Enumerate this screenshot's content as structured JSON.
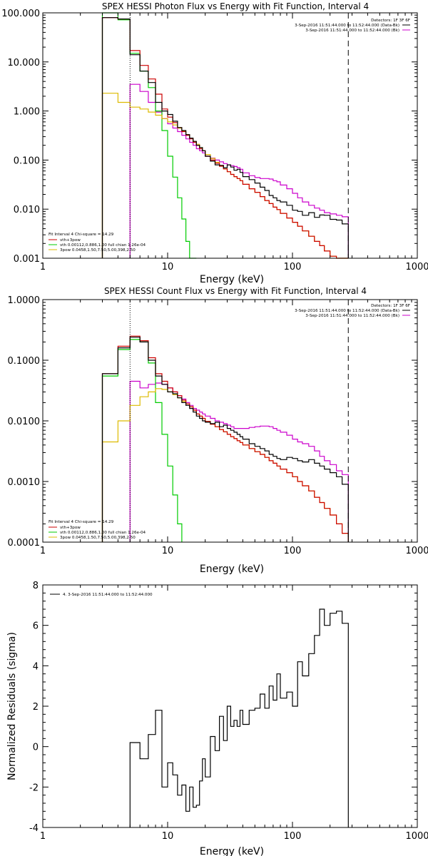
{
  "legend_top_right": {
    "detectors": "Detectors: 1F 3F 6F",
    "lines": [
      {
        "text": "3-Sep-2016 11:51:44.000 to 11:52:44.000 (Data-Bk)",
        "color": "#000000"
      },
      {
        "text": "3-Sep-2016 11:51:44.000 to 11:52:44.000 (Bk)",
        "color": "#cc00cc"
      }
    ]
  },
  "fit_legend": {
    "header": "Fit Interval  4    Chi-square = 14.29",
    "lines": [
      {
        "text": "vth+3pow",
        "color": "#cc0000"
      },
      {
        "text": "vth 0.00112,0.886,1.00   full chian 1.26e-04",
        "color": "#00cc00"
      },
      {
        "text": "3pow 0.0458,1.50,7.50,5.00,398,2.50",
        "color": "#ddbb00"
      }
    ]
  },
  "residual_legend": "4.  3-Sep-2016 11:51:44.000 to 11:52:44.000",
  "colors": {
    "data": "#000000",
    "background": "#cc00cc",
    "total_fit": "#cc0000",
    "thermal": "#00cc00",
    "power_law": "#ddbb00"
  },
  "chart_data": [
    {
      "type": "line",
      "title": "SPEX HESSI Photon Flux vs Energy with Fit Function, Interval 4",
      "xlabel": "Energy (keV)",
      "ylabel": "",
      "x_scale": "log",
      "y_scale": "log",
      "xlim": [
        1,
        1000
      ],
      "ylim": [
        0.001,
        100
      ],
      "xtick_labels": [
        "1",
        "10",
        "100",
        "1000"
      ],
      "ytick_labels": [
        "0.001",
        "0.010",
        "0.100",
        "1.000",
        "10.000",
        "100.000"
      ],
      "fit_range_lines": [
        5,
        280
      ],
      "bin_edges": [
        3,
        4,
        5,
        6,
        7,
        8,
        9,
        10,
        11,
        12,
        13,
        14,
        15,
        16,
        17,
        18,
        19,
        20,
        22,
        24,
        26,
        28,
        30,
        32,
        34,
        36,
        38,
        40,
        45,
        50,
        55,
        60,
        65,
        70,
        75,
        80,
        90,
        100,
        110,
        120,
        135,
        150,
        165,
        180,
        200,
        225,
        250,
        280
      ],
      "series": [
        {
          "name": "Data-Bk",
          "values": [
            80,
            75,
            14,
            6.5,
            3.8,
            1.5,
            1.0,
            0.85,
            0.62,
            0.46,
            0.4,
            0.33,
            0.28,
            0.24,
            0.2,
            0.18,
            0.155,
            0.12,
            0.095,
            0.08,
            0.078,
            0.07,
            0.08,
            0.072,
            0.062,
            0.065,
            0.056,
            0.046,
            0.04,
            0.034,
            0.028,
            0.024,
            0.019,
            0.017,
            0.015,
            0.014,
            0.012,
            0.0095,
            0.009,
            0.0075,
            0.0085,
            0.0068,
            0.0076,
            0.0075,
            0.0062,
            0.006,
            0.005
          ]
        },
        {
          "name": "Bk",
          "values": [
            null,
            null,
            3.5,
            2.5,
            1.5,
            0.95,
            0.7,
            0.55,
            0.45,
            0.38,
            0.32,
            0.27,
            0.23,
            0.2,
            0.17,
            0.155,
            0.14,
            0.12,
            0.11,
            0.1,
            0.092,
            0.085,
            0.08,
            0.077,
            0.074,
            0.07,
            0.065,
            0.055,
            0.048,
            0.044,
            0.042,
            0.042,
            0.041,
            0.038,
            0.036,
            0.031,
            0.026,
            0.021,
            0.017,
            0.014,
            0.012,
            0.0105,
            0.0095,
            0.0085,
            0.008,
            0.0075,
            0.007
          ]
        },
        {
          "name": "vth+3pow",
          "values": [
            80,
            75,
            17,
            8.5,
            4.5,
            2.2,
            1.1,
            0.75,
            0.58,
            0.46,
            0.38,
            0.32,
            0.27,
            0.23,
            0.2,
            0.17,
            0.155,
            0.12,
            0.1,
            0.086,
            0.075,
            0.066,
            0.058,
            0.051,
            0.046,
            0.042,
            0.038,
            0.032,
            0.026,
            0.022,
            0.018,
            0.015,
            0.013,
            0.011,
            0.0098,
            0.0082,
            0.0066,
            0.0054,
            0.0045,
            0.0036,
            0.0028,
            0.0022,
            0.0018,
            0.0014,
            0.0011,
            0.00085,
            0.00065
          ]
        },
        {
          "name": "vth",
          "values": [
            100,
            72,
            15,
            6.5,
            3.0,
            1.0,
            0.4,
            0.12,
            0.045,
            0.017,
            0.0063,
            0.0022,
            0.0008,
            0.0003,
            null,
            null,
            null,
            null,
            null,
            null,
            null,
            null,
            null,
            null,
            null,
            null,
            null,
            null,
            null,
            null,
            null,
            null,
            null,
            null,
            null,
            null,
            null,
            null,
            null,
            null,
            null,
            null,
            null,
            null,
            null,
            null,
            null
          ]
        },
        {
          "name": "3pow",
          "values": [
            2.3,
            1.5,
            1.2,
            1.1,
            0.95,
            0.82,
            0.7,
            0.6,
            0.52,
            0.45,
            0.39,
            0.33,
            0.28,
            0.24,
            0.21,
            0.18,
            0.155,
            0.13,
            0.108,
            0.09,
            0.077,
            0.066,
            0.058,
            0.051,
            0.046,
            0.042,
            0.038,
            0.032,
            0.026,
            0.022,
            0.018,
            0.015,
            0.013,
            0.011,
            0.0098,
            0.0082,
            0.0066,
            0.0054,
            0.0045,
            0.0036,
            0.0028,
            0.0022,
            0.0018,
            0.0014,
            0.0011,
            0.00085,
            0.00065
          ]
        }
      ]
    },
    {
      "type": "line",
      "title": "SPEX HESSI Count Flux vs Energy with Fit Function, Interval 4",
      "xlabel": "Energy (keV)",
      "ylabel": "",
      "x_scale": "log",
      "y_scale": "log",
      "xlim": [
        1,
        1000
      ],
      "ylim": [
        0.0001,
        1
      ],
      "xtick_labels": [
        "1",
        "10",
        "100",
        "1000"
      ],
      "ytick_labels": [
        "0.0001",
        "0.0010",
        "0.0100",
        "0.1000",
        "1.0000"
      ],
      "fit_range_lines": [
        5,
        280
      ],
      "bin_edges": [
        3,
        4,
        5,
        6,
        7,
        8,
        9,
        10,
        11,
        12,
        13,
        14,
        15,
        16,
        17,
        18,
        19,
        20,
        22,
        24,
        26,
        28,
        30,
        32,
        34,
        36,
        38,
        40,
        45,
        50,
        55,
        60,
        65,
        70,
        75,
        80,
        90,
        100,
        110,
        120,
        135,
        150,
        165,
        180,
        200,
        225,
        250,
        280
      ],
      "series": [
        {
          "name": "Data-Bk",
          "values": [
            0.06,
            0.16,
            0.24,
            0.2,
            0.1,
            0.055,
            0.04,
            0.03,
            0.028,
            0.024,
            0.02,
            0.018,
            0.016,
            0.014,
            0.012,
            0.011,
            0.01,
            0.0095,
            0.009,
            0.0095,
            0.008,
            0.0085,
            0.0075,
            0.007,
            0.0065,
            0.006,
            0.0055,
            0.005,
            0.0042,
            0.0038,
            0.0035,
            0.0032,
            0.0028,
            0.0026,
            0.0024,
            0.0023,
            0.0025,
            0.0024,
            0.0022,
            0.0021,
            0.0023,
            0.002,
            0.0018,
            0.0016,
            0.0014,
            0.0012,
            0.0009
          ]
        },
        {
          "name": "Bk",
          "values": [
            null,
            null,
            0.045,
            0.035,
            0.04,
            0.042,
            0.04,
            0.035,
            0.03,
            0.026,
            0.023,
            0.02,
            0.018,
            0.016,
            0.015,
            0.014,
            0.013,
            0.012,
            0.011,
            0.01,
            0.0095,
            0.009,
            0.0085,
            0.008,
            0.0075,
            0.0075,
            0.0075,
            0.0075,
            0.0078,
            0.008,
            0.0082,
            0.0082,
            0.008,
            0.0075,
            0.007,
            0.0065,
            0.0058,
            0.005,
            0.0045,
            0.0042,
            0.0038,
            0.0032,
            0.0026,
            0.0022,
            0.0019,
            0.0015,
            0.0013
          ]
        },
        {
          "name": "vth+3pow",
          "values": [
            0.06,
            0.17,
            0.25,
            0.21,
            0.11,
            0.06,
            0.045,
            0.035,
            0.03,
            0.026,
            0.022,
            0.019,
            0.017,
            0.015,
            0.013,
            0.012,
            0.011,
            0.0098,
            0.0088,
            0.008,
            0.0072,
            0.0066,
            0.006,
            0.0055,
            0.0051,
            0.0047,
            0.0044,
            0.004,
            0.0035,
            0.0031,
            0.0028,
            0.0025,
            0.0022,
            0.002,
            0.0018,
            0.0016,
            0.0014,
            0.0012,
            0.001,
            0.00085,
            0.0007,
            0.00055,
            0.00045,
            0.00036,
            0.00028,
            0.0002,
            0.00014
          ]
        },
        {
          "name": "vth",
          "values": [
            0.055,
            0.15,
            0.22,
            0.2,
            0.09,
            0.02,
            0.006,
            0.0018,
            0.0006,
            0.0002,
            null,
            null,
            null,
            null,
            null,
            null,
            null,
            null,
            null,
            null,
            null,
            null,
            null,
            null,
            null,
            null,
            null,
            null,
            null,
            null,
            null,
            null,
            null,
            null,
            null,
            null,
            null,
            null,
            null,
            null,
            null,
            null,
            null,
            null,
            null,
            null,
            null
          ]
        },
        {
          "name": "3pow",
          "values": [
            0.0045,
            0.01,
            0.018,
            0.025,
            0.03,
            0.034,
            0.033,
            0.03,
            0.027,
            0.024,
            0.021,
            0.019,
            0.017,
            0.015,
            0.013,
            0.012,
            0.011,
            0.0098,
            0.0088,
            0.008,
            0.0072,
            0.0066,
            0.006,
            0.0055,
            0.0051,
            0.0047,
            0.0044,
            0.004,
            0.0035,
            0.0031,
            0.0028,
            0.0025,
            0.0022,
            0.002,
            0.0018,
            0.0016,
            0.0014,
            0.0012,
            0.001,
            0.00085,
            0.0007,
            0.00055,
            0.00045,
            0.00036,
            0.00028,
            0.0002,
            0.00014
          ]
        }
      ]
    },
    {
      "type": "line",
      "title": "",
      "xlabel": "Energy (keV)",
      "ylabel": "Normalized Residuals (sigma)",
      "x_scale": "log",
      "y_scale": "linear",
      "xlim": [
        1,
        1000
      ],
      "ylim": [
        -4,
        8
      ],
      "xtick_labels": [
        "1",
        "10",
        "100",
        "1000"
      ],
      "ytick_labels": [
        "-4",
        "-2",
        "0",
        "2",
        "4",
        "6",
        "8"
      ],
      "bin_edges": [
        5,
        6,
        7,
        8,
        9,
        10,
        11,
        12,
        13,
        14,
        15,
        16,
        17,
        18,
        19,
        20,
        22,
        24,
        26,
        28,
        30,
        32,
        34,
        36,
        38,
        40,
        45,
        50,
        55,
        60,
        65,
        70,
        75,
        80,
        90,
        100,
        110,
        120,
        135,
        150,
        165,
        180,
        200,
        225,
        250,
        280
      ],
      "series": [
        {
          "name": "4.  3-Sep-2016 11:51:44.000 to 11:52:44.000",
          "values": [
            0.2,
            -0.6,
            0.6,
            1.8,
            -2.0,
            -0.8,
            -1.4,
            -2.4,
            -1.9,
            -3.2,
            -2.0,
            -3.0,
            -2.9,
            -1.7,
            -0.6,
            -1.5,
            0.5,
            -0.2,
            1.5,
            0.3,
            2.0,
            1.0,
            1.3,
            1.0,
            1.8,
            1.1,
            1.8,
            1.9,
            2.6,
            1.9,
            3.0,
            2.3,
            3.6,
            2.4,
            2.7,
            2.0,
            4.2,
            3.5,
            4.6,
            5.5,
            6.8,
            6.0,
            6.6,
            6.7,
            6.1
          ]
        }
      ]
    }
  ]
}
